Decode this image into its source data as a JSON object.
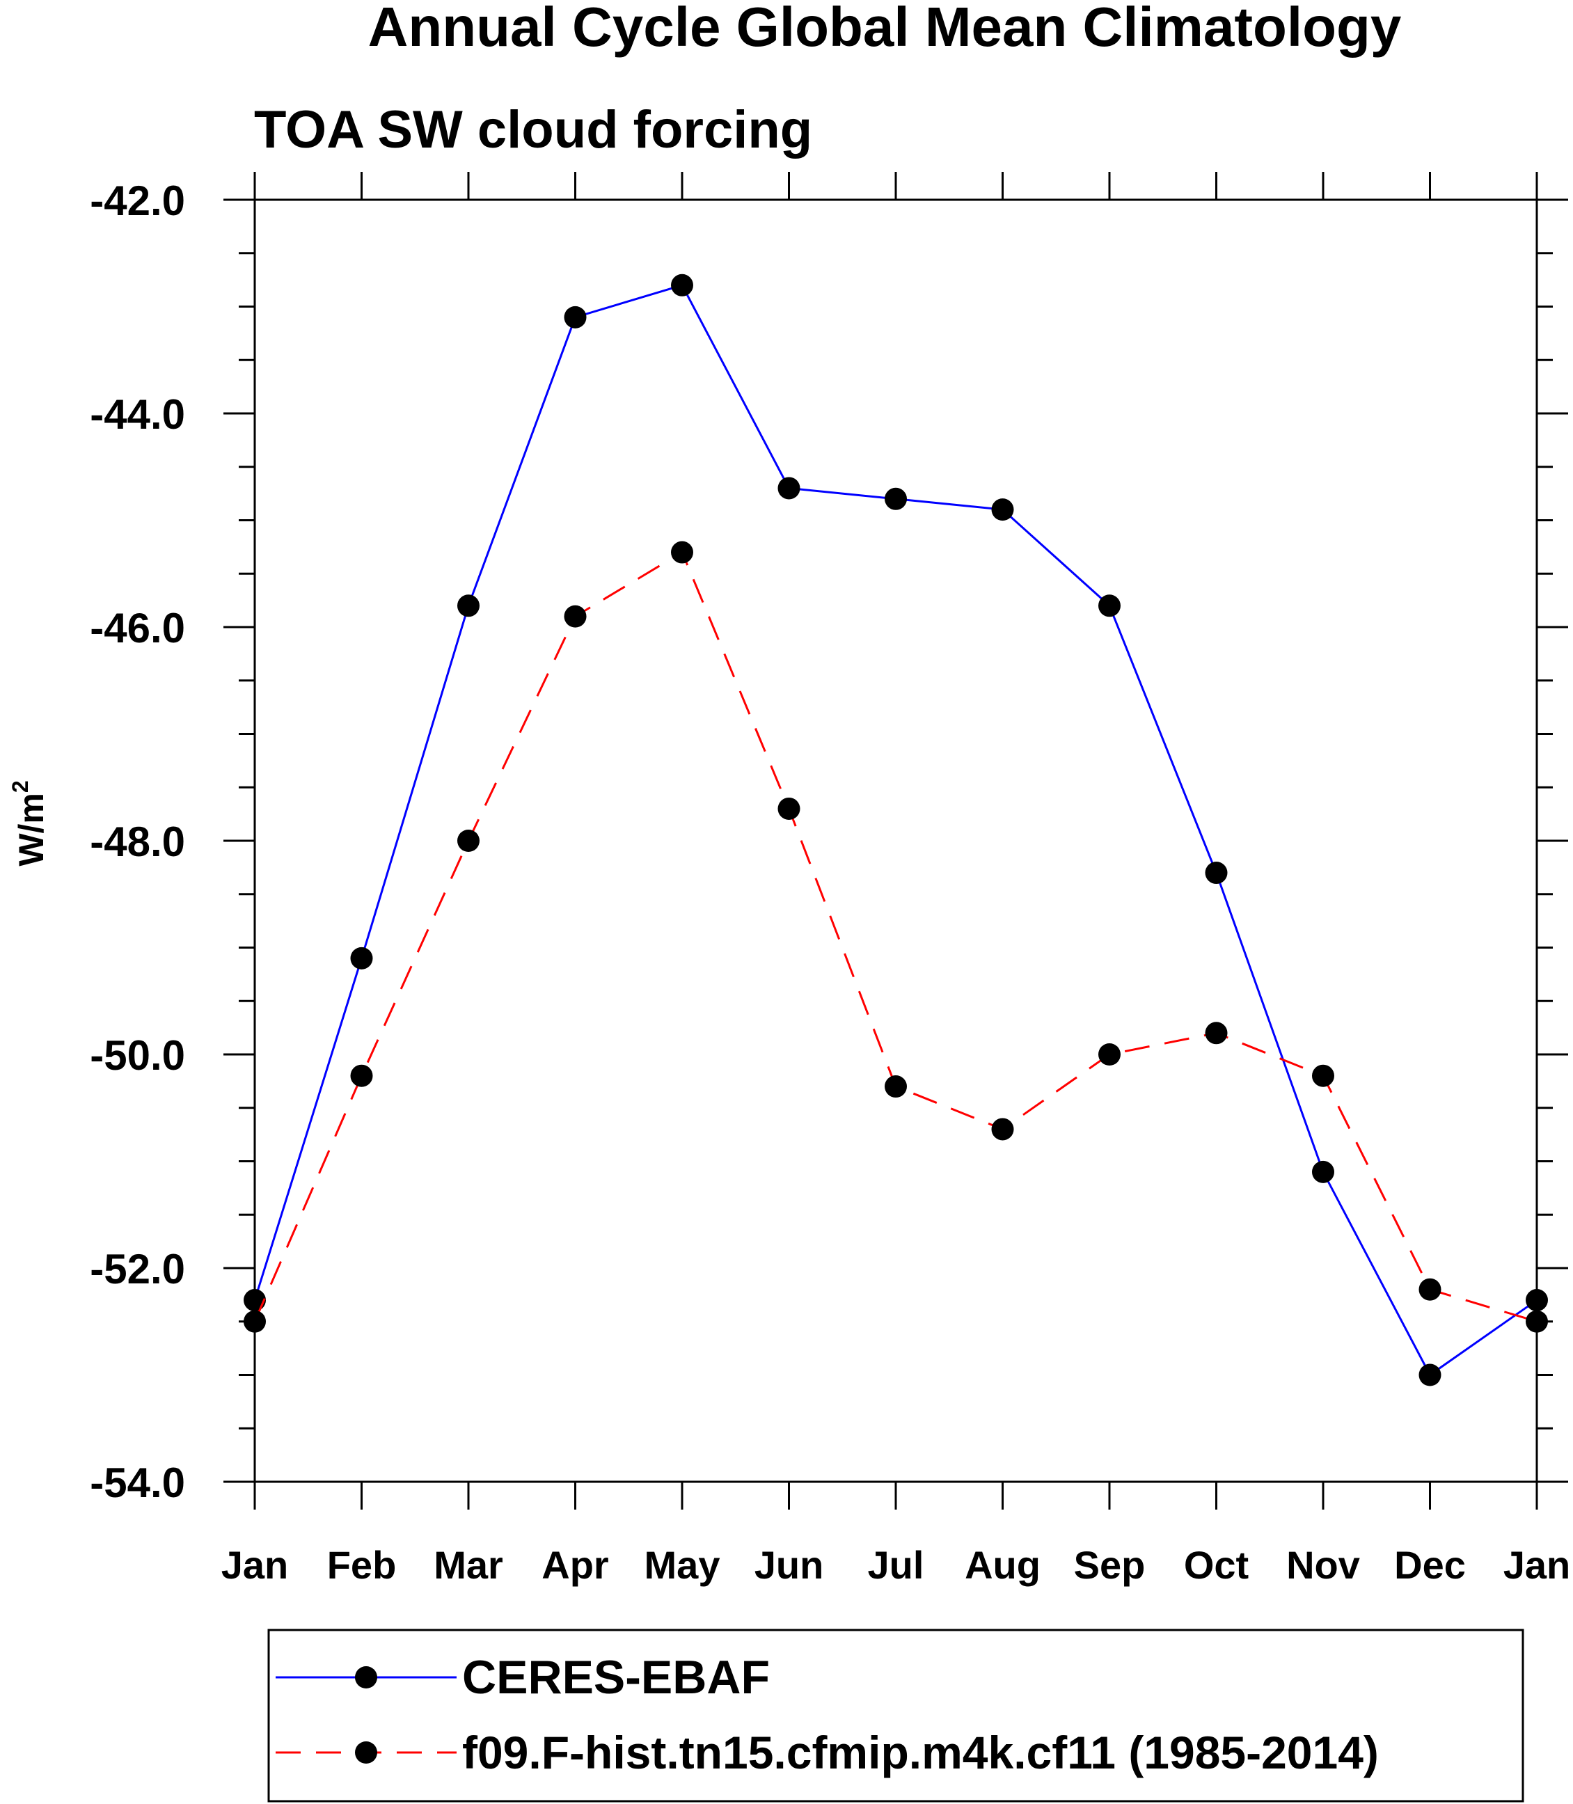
{
  "chart_data": {
    "type": "line",
    "title": "Annual Cycle Global Mean Climatology",
    "subtitle": "TOA SW cloud forcing",
    "xlabel": "",
    "ylabel_base": "W/m",
    "ylabel_sup": "2",
    "categories": [
      "Jan",
      "Feb",
      "Mar",
      "Apr",
      "May",
      "Jun",
      "Jul",
      "Aug",
      "Sep",
      "Oct",
      "Nov",
      "Dec",
      "Jan"
    ],
    "ylim": [
      -54.0,
      -42.0
    ],
    "yticks": [
      -42.0,
      -44.0,
      -46.0,
      -48.0,
      -50.0,
      -52.0,
      -54.0
    ],
    "ytick_labels": [
      "-42.0",
      "-44.0",
      "-46.0",
      "-48.0",
      "-50.0",
      "-52.0",
      "-54.0"
    ],
    "yminor_step": 0.5,
    "grid": false,
    "legend_position": "bottom",
    "series": [
      {
        "name": "CERES-EBAF",
        "color": "#0000ff",
        "dash": "solid",
        "values": [
          -52.3,
          -49.1,
          -45.8,
          -43.1,
          -42.8,
          -44.7,
          -44.8,
          -44.9,
          -45.8,
          -48.3,
          -51.1,
          -53.0,
          -52.3
        ]
      },
      {
        "name": "f09.F-hist.tn15.cfmip.m4k.cf11 (1985-2014)",
        "color": "#ff0000",
        "dash": "dashed",
        "values": [
          -52.5,
          -50.2,
          -48.0,
          -45.9,
          -45.3,
          -47.7,
          -50.3,
          -50.7,
          -50.0,
          -49.8,
          -50.2,
          -52.2,
          -52.5
        ]
      }
    ],
    "marker": {
      "shape": "circle",
      "color": "#000000"
    }
  }
}
